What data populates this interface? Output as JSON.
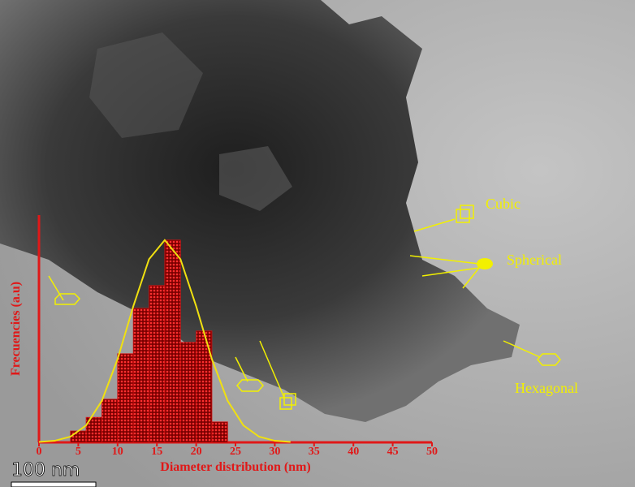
{
  "chart_data": {
    "type": "histogram",
    "bins": [
      4,
      6,
      8,
      10,
      12,
      14,
      16,
      18,
      20,
      22,
      24
    ],
    "values": [
      5,
      11,
      19,
      39,
      59,
      69,
      89,
      44,
      49,
      9
    ],
    "color": "#d01010",
    "curve": {
      "color": "#f0e010",
      "x": [
        0,
        2,
        4,
        6,
        8,
        10,
        12,
        14,
        16,
        18,
        20,
        22,
        24,
        26,
        28,
        30,
        32
      ],
      "values": [
        0.16,
        0.7,
        2.5,
        7.5,
        18.3,
        36.6,
        59.9,
        80.6,
        89,
        80.6,
        59.9,
        36.6,
        18.3,
        7.5,
        2.5,
        0.7,
        0.16
      ]
    },
    "xlim": [
      0,
      50
    ],
    "xticks": [
      0,
      5,
      10,
      15,
      20,
      25,
      30,
      35,
      40,
      45,
      50
    ],
    "ylim": [
      0,
      100
    ],
    "xlabel": "Diameter distribution (nm)",
    "ylabel": "Frecuencies (a.u)",
    "annotations": [
      "Cubic",
      "Spherical",
      "Hexagonal"
    ],
    "scale_bar": "100 nm"
  }
}
